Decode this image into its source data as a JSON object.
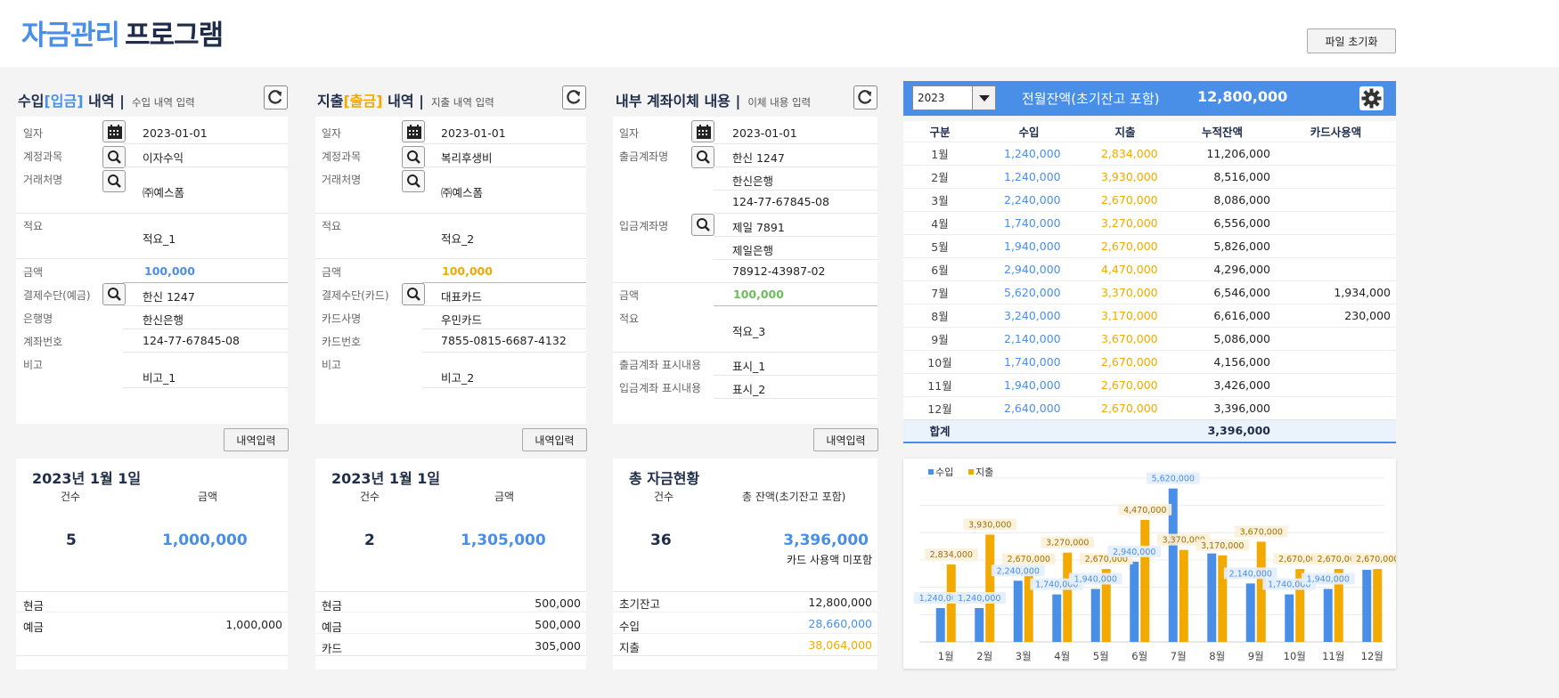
{
  "app": {
    "title_part1": "자금관리",
    "title_part2": "프로그램",
    "reset_button": "파일 초기화"
  },
  "income": {
    "title_a": "수입",
    "title_b": "[입금]",
    "title_c": " 내역 |",
    "subtitle": "수입 내역 입력",
    "labels": {
      "date": "일자",
      "account": "계정과목",
      "vendor": "거래처명",
      "memo": "적요",
      "amount": "금액",
      "payment": "결제수단(예금)",
      "bank": "은행명",
      "acctno": "계좌번호",
      "note": "비고"
    },
    "values": {
      "date": "2023-01-01",
      "account": "이자수익",
      "vendor": "㈜예스폼",
      "memo": "적요_1",
      "amount": "100,000",
      "payment": "한신 1247",
      "bank": "한신은행",
      "acctno": "124-77-67845-08",
      "note": "비고_1"
    },
    "submit": "내역입력",
    "summary": {
      "date": "2023년 1월 1일",
      "count_label": "건수",
      "amount_label": "금액",
      "count": "5",
      "amount": "1,000,000",
      "rows": [
        {
          "label": "현금",
          "value": ""
        },
        {
          "label": "예금",
          "value": "1,000,000"
        }
      ]
    }
  },
  "expense": {
    "title_a": "지출",
    "title_b": "[출금]",
    "title_c": " 내역 |",
    "subtitle": "지출 내역 입력",
    "labels": {
      "date": "일자",
      "account": "계정과목",
      "vendor": "거래처명",
      "memo": "적요",
      "amount": "금액",
      "payment": "결제수단(카드)",
      "cardco": "카드사명",
      "cardno": "카드번호",
      "note": "비고"
    },
    "values": {
      "date": "2023-01-01",
      "account": "복리후생비",
      "vendor": "㈜예스폼",
      "memo": "적요_2",
      "amount": "100,000",
      "payment": "대표카드",
      "cardco": "우민카드",
      "cardno": "7855-0815-6687-4132",
      "note": "비고_2"
    },
    "submit": "내역입력",
    "summary": {
      "date": "2023년 1월 1일",
      "count_label": "건수",
      "amount_label": "금액",
      "count": "2",
      "amount": "1,305,000",
      "rows": [
        {
          "label": "현금",
          "value": "500,000"
        },
        {
          "label": "예금",
          "value": "500,000"
        },
        {
          "label": "카드",
          "value": "305,000"
        }
      ]
    }
  },
  "transfer": {
    "title": "내부 계좌이체 내용 |",
    "subtitle": "이체 내용 입력",
    "labels": {
      "date": "일자",
      "from": "출금계좌명",
      "to": "입금계좌명",
      "amount": "금액",
      "memo": "적요",
      "from_disp": "출금계좌 표시내용",
      "to_disp": "입금계좌 표시내용"
    },
    "values": {
      "date": "2023-01-01",
      "from_name": "한신 1247",
      "from_bank": "한신은행",
      "from_no": "124-77-67845-08",
      "to_name": "제일 7891",
      "to_bank": "제일은행",
      "to_no": "78912-43987-02",
      "amount": "100,000",
      "memo": "적요_3",
      "from_disp": "표시_1",
      "to_disp": "표시_2"
    },
    "submit": "내역입력",
    "summary": {
      "title": "총 자금현황",
      "count_label": "건수",
      "balance_label": "총 잔액(초기잔고 포함)",
      "count": "36",
      "balance": "3,396,000",
      "note": "카드 사용액 미포함",
      "rows": [
        {
          "label": "초기잔고",
          "value": "12,800,000"
        },
        {
          "label": "수입",
          "value": "28,660,000"
        },
        {
          "label": "지출",
          "value": "38,064,000"
        }
      ]
    }
  },
  "monthly": {
    "year": "2023",
    "bar_title": "전월잔액(초기잔고 포함)",
    "bar_value": "12,800,000",
    "headers": [
      "구분",
      "수입",
      "지출",
      "누적잔액",
      "카드사용액"
    ],
    "rows": [
      [
        "1월",
        "1,240,000",
        "2,834,000",
        "11,206,000",
        ""
      ],
      [
        "2월",
        "1,240,000",
        "3,930,000",
        "8,516,000",
        ""
      ],
      [
        "3월",
        "2,240,000",
        "2,670,000",
        "8,086,000",
        ""
      ],
      [
        "4월",
        "1,740,000",
        "3,270,000",
        "6,556,000",
        ""
      ],
      [
        "5월",
        "1,940,000",
        "2,670,000",
        "5,826,000",
        ""
      ],
      [
        "6월",
        "2,940,000",
        "4,470,000",
        "4,296,000",
        ""
      ],
      [
        "7월",
        "5,620,000",
        "3,370,000",
        "6,546,000",
        "1,934,000"
      ],
      [
        "8월",
        "3,240,000",
        "3,170,000",
        "6,616,000",
        "230,000"
      ],
      [
        "9월",
        "2,140,000",
        "3,670,000",
        "5,086,000",
        ""
      ],
      [
        "10월",
        "1,740,000",
        "2,670,000",
        "4,156,000",
        ""
      ],
      [
        "11월",
        "1,940,000",
        "2,670,000",
        "3,426,000",
        ""
      ],
      [
        "12월",
        "2,640,000",
        "2,670,000",
        "3,396,000",
        ""
      ]
    ],
    "total_label": "합계",
    "total_value": "3,396,000"
  },
  "chart_data": {
    "type": "bar",
    "categories": [
      "1월",
      "2월",
      "3월",
      "4월",
      "5월",
      "6월",
      "7월",
      "8월",
      "9월",
      "10월",
      "11월",
      "12월"
    ],
    "series": [
      {
        "name": "수입",
        "color": "#4a8fe7",
        "values": [
          1240000,
          1240000,
          2240000,
          1740000,
          1940000,
          2940000,
          5620000,
          3240000,
          2140000,
          1740000,
          1940000,
          2640000
        ],
        "labels": [
          "1,240,000",
          "1,240,000",
          "2,240,000",
          "1,740,000",
          "1,940,000",
          "2,940,000",
          "5,620,000",
          "",
          "2,140,000",
          "1,740,000",
          "1,940,000",
          ""
        ]
      },
      {
        "name": "지출",
        "color": "#f2a900",
        "values": [
          2834000,
          3930000,
          2670000,
          3270000,
          2670000,
          4470000,
          3370000,
          3170000,
          3670000,
          2670000,
          2670000,
          2670000
        ],
        "labels": [
          "2,834,000",
          "3,930,000",
          "2,670,000",
          "3,270,000",
          "2,670,000",
          "4,470,000",
          "3,370,000",
          "3,170,000",
          "3,670,000",
          "2,670,000",
          "2,670,000",
          "2,670,000"
        ]
      }
    ],
    "ylim": [
      0,
      6000000
    ],
    "legend": "top-left",
    "grid": true
  }
}
